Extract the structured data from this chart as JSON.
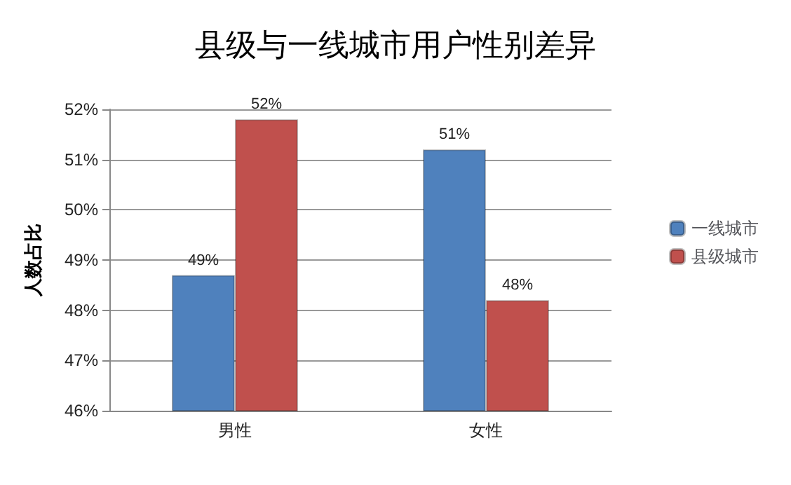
{
  "chart_data": {
    "type": "bar",
    "title": "县级与一线城市用户性别差异",
    "ylabel": "人数占比",
    "categories": [
      "男性",
      "女性"
    ],
    "series": [
      {
        "name": "一线城市",
        "color": "#4f81bd",
        "values": [
          48.7,
          51.2
        ],
        "value_labels": [
          "49%",
          "51%"
        ]
      },
      {
        "name": "县级城市",
        "color": "#c0504d",
        "values": [
          51.8,
          48.2
        ],
        "value_labels": [
          "52%",
          "48%"
        ]
      }
    ],
    "ylim": [
      46,
      52
    ],
    "yticks": [
      {
        "value": 46,
        "label": "46%"
      },
      {
        "value": 47,
        "label": "47%"
      },
      {
        "value": 48,
        "label": "48%"
      },
      {
        "value": 49,
        "label": "49%"
      },
      {
        "value": 50,
        "label": "50%"
      },
      {
        "value": 51,
        "label": "51%"
      },
      {
        "value": 52,
        "label": "52%"
      }
    ],
    "grid": "y",
    "legend": "right"
  }
}
